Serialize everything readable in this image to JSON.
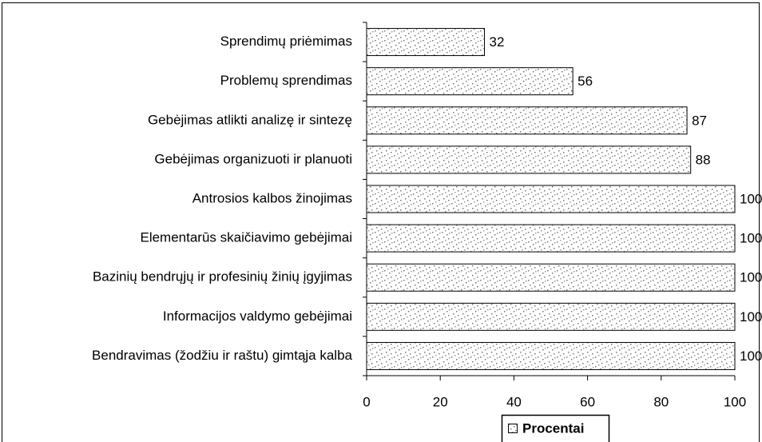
{
  "chart_data": {
    "type": "bar",
    "orientation": "horizontal",
    "categories": [
      "Sprendimų priėmimas",
      "Problemų sprendimas",
      "Gebėjimas atlikti analizę ir sintezę",
      "Gebėjimas organizuoti ir planuoti",
      "Antrosios kalbos žinojimas",
      "Elementarūs skaičiavimo gebėjimai",
      "Bazinių bendrųjų ir profesinių žinių įgyjimas",
      "Informacijos valdymo gebėjimai",
      "Bendravimas (žodžiu ir raštu) gimtąja kalba"
    ],
    "series": [
      {
        "name": "Procentai",
        "values": [
          32,
          56,
          87,
          88,
          100,
          100,
          100,
          100,
          100
        ]
      }
    ],
    "xlim": [
      0,
      100
    ],
    "xticks": [
      0,
      20,
      40,
      60,
      80,
      100
    ],
    "legend": "bottom"
  }
}
